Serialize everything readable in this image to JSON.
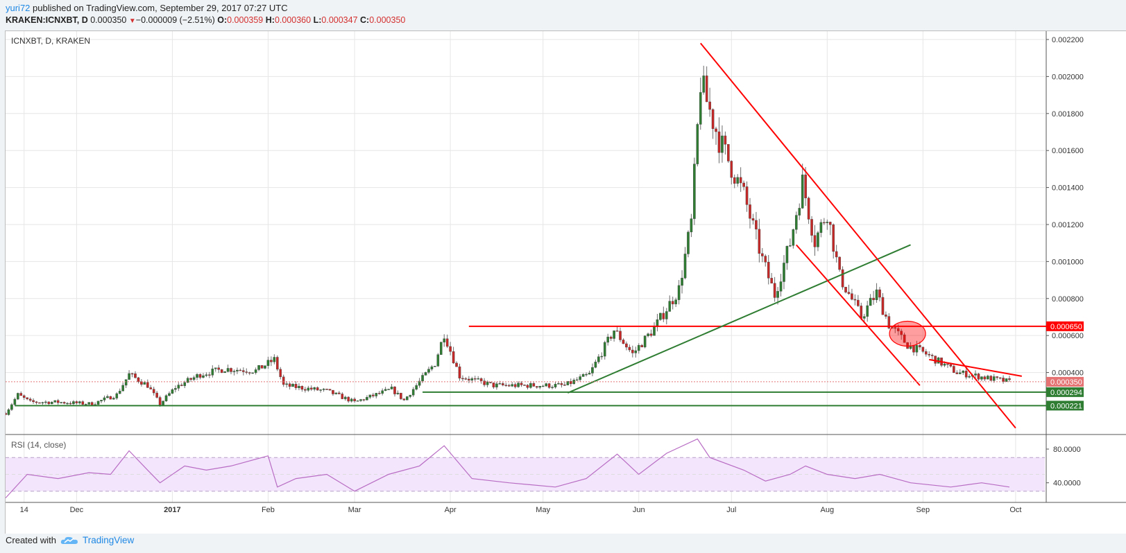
{
  "header": {
    "author": "yuri72",
    "published": " published on TradingView.com, September 29, 2017 07:27 UTC",
    "symbol": "KRAKEN:ICNXBT, D",
    "last": "0.000350",
    "change": "−0.000009 (−2.51%)",
    "o_label": "O:",
    "o": "0.000359",
    "h_label": "H:",
    "h": "0.000360",
    "l_label": "L:",
    "l": "0.000347",
    "c_label": "C:",
    "c": "0.000350"
  },
  "footer": {
    "created_with": "Created with",
    "brand": "TradingView"
  },
  "chart_data": [
    {
      "type": "candlestick",
      "title": "ICNXBT, D, KRAKEN",
      "x_ticks": [
        "14",
        "Dec",
        "2017",
        "Feb",
        "Mar",
        "Apr",
        "May",
        "Jun",
        "Jul",
        "Aug",
        "Sep",
        "Oct"
      ],
      "y_ticks": [
        "0.002200",
        "0.002000",
        "0.001800",
        "0.001600",
        "0.001400",
        "0.001200",
        "0.001000",
        "0.000800",
        "0.000600",
        "0.000400"
      ],
      "ylim": [
        8e-05,
        0.00223
      ],
      "price_labels": [
        {
          "value": 0.00065,
          "text": "0.000650",
          "color": "#ff0000"
        },
        {
          "value": 0.00035,
          "text": "0.000350",
          "color": "#e57373"
        },
        {
          "value": 0.000294,
          "text": "0.000294",
          "color": "#2e7d32"
        },
        {
          "value": 0.000221,
          "text": "0.000221",
          "color": "#2e7d32"
        }
      ],
      "series": [
        {
          "name": "ICNXBT",
          "description": "Daily candles, approx. Nov 8 2016 – Sep 29 2017",
          "close_path": [
            [
              "2016-11-08",
              0.00018
            ],
            [
              "2016-11-12",
              0.00028
            ],
            [
              "2016-11-16",
              0.00024
            ],
            [
              "2016-11-25",
              0.00024
            ],
            [
              "2016-12-06",
              0.00023
            ],
            [
              "2016-12-14",
              0.00028
            ],
            [
              "2016-12-18",
              0.00039
            ],
            [
              "2016-12-24",
              0.00033
            ],
            [
              "2016-12-28",
              0.00023
            ],
            [
              "2017-01-02",
              0.00032
            ],
            [
              "2017-01-10",
              0.00039
            ],
            [
              "2017-01-18",
              0.00042
            ],
            [
              "2017-01-28",
              0.00041
            ],
            [
              "2017-02-03",
              0.00047
            ],
            [
              "2017-02-06",
              0.00033
            ],
            [
              "2017-02-20",
              0.0003
            ],
            [
              "2017-03-01",
              0.00024
            ],
            [
              "2017-03-13",
              0.00031
            ],
            [
              "2017-03-17",
              0.00025
            ],
            [
              "2017-03-22",
              0.00035
            ],
            [
              "2017-03-27",
              0.00045
            ],
            [
              "2017-03-30",
              0.00061
            ],
            [
              "2017-04-04",
              0.00038
            ],
            [
              "2017-04-15",
              0.00033
            ],
            [
              "2017-05-08",
              0.00033
            ],
            [
              "2017-05-16",
              0.00039
            ],
            [
              "2017-05-24",
              0.00063
            ],
            [
              "2017-05-30",
              0.0005
            ],
            [
              "2017-06-06",
              0.00064
            ],
            [
              "2017-06-14",
              0.00085
            ],
            [
              "2017-06-18",
              0.00121
            ],
            [
              "2017-06-21",
              0.00197
            ],
            [
              "2017-06-27",
              0.00166
            ],
            [
              "2017-07-05",
              0.00136
            ],
            [
              "2017-07-11",
              0.00101
            ],
            [
              "2017-07-15",
              0.00082
            ],
            [
              "2017-07-20",
              0.0011
            ],
            [
              "2017-07-24",
              0.00143
            ],
            [
              "2017-07-28",
              0.00111
            ],
            [
              "2017-08-01",
              0.00127
            ],
            [
              "2017-08-05",
              0.00092
            ],
            [
              "2017-08-12",
              0.0007
            ],
            [
              "2017-08-17",
              0.00083
            ],
            [
              "2017-08-21",
              0.00066
            ],
            [
              "2017-08-27",
              0.00055
            ],
            [
              "2017-09-02",
              0.0005
            ],
            [
              "2017-09-12",
              0.0004
            ],
            [
              "2017-09-22",
              0.00037
            ],
            [
              "2017-09-29",
              0.00035
            ]
          ]
        }
      ],
      "annotations": [
        {
          "type": "horizontal-line",
          "color": "#ff0000",
          "value": 0.00065,
          "from": "2017-04-07"
        },
        {
          "type": "horizontal-line",
          "color": "#2e7d32",
          "value": 0.000294,
          "from": "2017-03-23"
        },
        {
          "type": "horizontal-line",
          "color": "#2e7d32",
          "value": 0.000221,
          "from": "2016-11-11"
        },
        {
          "type": "trend-line",
          "color": "#2e7d32",
          "from": [
            "2017-05-09",
            0.00029
          ],
          "to": [
            "2017-08-28",
            0.00109
          ]
        },
        {
          "type": "trend-line",
          "color": "#ff0000",
          "from": [
            "2017-06-21",
            0.00218
          ],
          "to": [
            "2017-10-01",
            0.0001
          ]
        },
        {
          "type": "trend-line",
          "color": "#ff0000",
          "from": [
            "2017-07-22",
            0.00109
          ],
          "to": [
            "2017-08-31",
            0.00033
          ]
        },
        {
          "type": "trend-line",
          "color": "#ff0000",
          "from": [
            "2017-09-03",
            0.00047
          ],
          "to": [
            "2017-10-03",
            0.00038
          ]
        },
        {
          "type": "ellipse",
          "color": "#ff0000",
          "center": [
            "2017-08-27",
            0.00061
          ]
        }
      ],
      "grid": true
    },
    {
      "type": "line",
      "title": "RSI (14, close)",
      "y_ticks": [
        "80.0000",
        "40.0000"
      ],
      "ylim": [
        20,
        94
      ],
      "band": [
        30,
        70
      ],
      "series": [
        {
          "name": "RSI",
          "x": [
            "2016-11-08",
            "2016-11-15",
            "2016-11-25",
            "2016-12-05",
            "2016-12-12",
            "2016-12-18",
            "2016-12-24",
            "2016-12-28",
            "2017-01-05",
            "2017-01-12",
            "2017-01-20",
            "2017-02-01",
            "2017-02-04",
            "2017-02-10",
            "2017-02-20",
            "2017-03-01",
            "2017-03-12",
            "2017-03-22",
            "2017-03-30",
            "2017-04-08",
            "2017-04-20",
            "2017-05-05",
            "2017-05-15",
            "2017-05-25",
            "2017-06-01",
            "2017-06-10",
            "2017-06-20",
            "2017-06-24",
            "2017-07-05",
            "2017-07-12",
            "2017-07-20",
            "2017-07-25",
            "2017-08-01",
            "2017-08-10",
            "2017-08-18",
            "2017-08-28",
            "2017-09-10",
            "2017-09-20",
            "2017-09-29"
          ],
          "values": [
            22,
            50,
            45,
            52,
            50,
            78,
            55,
            40,
            60,
            55,
            60,
            72,
            35,
            45,
            50,
            30,
            50,
            60,
            84,
            45,
            40,
            35,
            45,
            74,
            50,
            75,
            92,
            70,
            55,
            42,
            50,
            60,
            50,
            45,
            50,
            40,
            35,
            40,
            35
          ]
        }
      ]
    }
  ]
}
